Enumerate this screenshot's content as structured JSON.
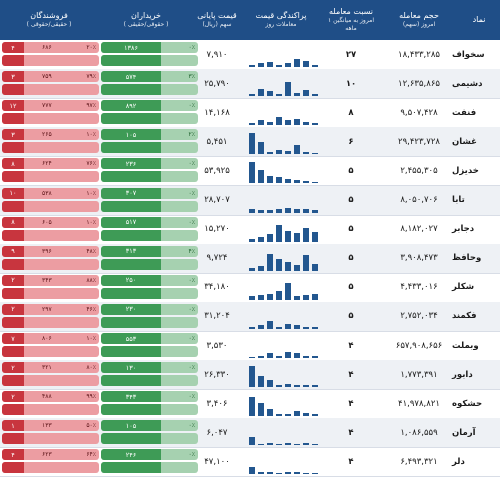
{
  "header": {
    "symbol": "نماد",
    "volume": "حجم معامله",
    "volume_sub": "امروز (سهم)",
    "ratio": "نسبت معامله",
    "ratio_sub": "امروز به میانگین ۱ ماهه",
    "dispersion": "پراکندگی قیمت",
    "dispersion_sub": "معاملات روز",
    "close": "قیمت پایانی",
    "close_sub": "سهم (ریال)",
    "buyers": "خریداران",
    "buyers_sub": "( حقوقی/حقیقی )",
    "sellers": "فروشندگان",
    "sellers_sub": "( حقیقی/حقوقی )"
  },
  "colors": {
    "header": "#1f4e87",
    "bar": "#23578f",
    "buy": "#3e9b56",
    "sell": "#c8353e"
  },
  "rows": [
    {
      "symbol": "سخواف",
      "volume": "۱۸,۴۳۳,۲۸۵",
      "ratio": "۲۷",
      "close": "۷,۹۱۰",
      "buy_real": "۰٪",
      "buy_legal": "۱۳۸۶",
      "sell_real": "۴",
      "sell_legal": "۶۸۶",
      "sell_pct": "۲۰٪"
    },
    {
      "symbol": "دشیمی",
      "volume": "۱۲,۶۳۵,۸۶۵",
      "ratio": "۱۰",
      "close": "۲۵,۷۹۰",
      "buy_real": "۳٪",
      "buy_legal": "۵۷۴",
      "sell_real": "۳",
      "sell_legal": "۷۵۹",
      "sell_pct": "۷۹٪"
    },
    {
      "symbol": "فنفت",
      "volume": "۹,۵۰۷,۴۲۸",
      "ratio": "۸",
      "close": "۱۴,۱۶۸",
      "buy_real": "۰٪",
      "buy_legal": "۸۹۲",
      "sell_real": "۱۲",
      "sell_legal": "۷۷۷",
      "sell_pct": "۹۷٪"
    },
    {
      "symbol": "غشان",
      "volume": "۲۹,۴۲۳,۷۲۸",
      "ratio": "۶",
      "close": "۵,۴۵۱",
      "buy_real": "۲٪",
      "buy_legal": "۱۰۵",
      "sell_real": "۳",
      "sell_legal": "۲۶۵",
      "sell_pct": "۱۰٪"
    },
    {
      "symbol": "خدیزل",
      "volume": "۲,۴۵۵,۳۰۵",
      "ratio": "۵",
      "close": "۵۳,۹۲۵",
      "buy_real": "۰٪",
      "buy_legal": "۲۳۶",
      "sell_real": "۸",
      "sell_legal": "۶۲۴",
      "sell_pct": "۷۶٪"
    },
    {
      "symbol": "تابا",
      "volume": "۸,۰۵۰,۷۰۶",
      "ratio": "۵",
      "close": "۲۸,۷۰۷",
      "buy_real": "۰٪",
      "buy_legal": "۳۰۷",
      "sell_real": "۱۰",
      "sell_legal": "۵۳۸",
      "sell_pct": "۱۰٪"
    },
    {
      "symbol": "دجابر",
      "volume": "۸,۱۸۲,۰۲۷",
      "ratio": "۵",
      "close": "۱۵,۲۷۰",
      "buy_real": "۰٪",
      "buy_legal": "۵۱۷",
      "sell_real": "۸",
      "sell_legal": "۶۰۵",
      "sell_pct": "۱۰٪"
    },
    {
      "symbol": "وحافظ",
      "volume": "۳,۹۰۸,۴۷۳",
      "ratio": "۵",
      "close": "۹,۷۲۴",
      "buy_real": "۴٪",
      "buy_legal": "۳۱۳",
      "sell_real": "۹",
      "sell_legal": "۳۹۶",
      "sell_pct": "۴۸٪"
    },
    {
      "symbol": "شکلر",
      "volume": "۴,۴۳۳,۰۱۶",
      "ratio": "۵",
      "close": "۳۴,۱۸۰",
      "buy_real": "۰٪",
      "buy_legal": "۲۵۰",
      "sell_real": "۲",
      "sell_legal": "۳۴۳",
      "sell_pct": "۸۸٪"
    },
    {
      "symbol": "فکمند",
      "volume": "۲,۷۵۲,۰۳۴",
      "ratio": "۵",
      "close": "۳۱,۲۰۴",
      "buy_real": "۰٪",
      "buy_legal": "۲۳۰",
      "sell_real": "۲",
      "sell_legal": "۲۹۷",
      "sell_pct": "۴۶٪"
    },
    {
      "symbol": "وبملت",
      "volume": "۶۵۷,۹۰۸,۶۵۶",
      "ratio": "۴",
      "close": "۳,۵۳۰",
      "buy_real": "۰٪",
      "buy_legal": "۵۵۳",
      "sell_real": "۷",
      "sell_legal": "۸۰۶",
      "sell_pct": "۱۰٪"
    },
    {
      "symbol": "دابور",
      "volume": "۱,۷۷۳,۳۹۱",
      "ratio": "۴",
      "close": "۲۶,۳۳۰",
      "buy_real": "۰٪",
      "buy_legal": "۱۳۰",
      "sell_real": "۲",
      "sell_legal": "۳۲۱",
      "sell_pct": "۸۰٪"
    },
    {
      "symbol": "حشکوه",
      "volume": "۴۱,۹۷۸,۸۲۱",
      "ratio": "۴",
      "close": "۳,۴۰۶",
      "buy_real": "۰٪",
      "buy_legal": "۳۴۳",
      "sell_real": "۲",
      "sell_legal": "۴۸۸",
      "sell_pct": "۹۹٪"
    },
    {
      "symbol": "آرمان",
      "volume": "۱,۰۸۶,۵۵۹",
      "ratio": "۴",
      "close": "۶,۰۴۷",
      "buy_real": "۰٪",
      "buy_legal": "۱۰۵",
      "sell_real": "۱",
      "sell_legal": "۱۳۳",
      "sell_pct": "۵۰٪"
    },
    {
      "symbol": "دلر",
      "volume": "۶,۴۹۳,۳۲۱",
      "ratio": "۴",
      "close": "۴۷,۱۰۰",
      "buy_real": "۰٪",
      "buy_legal": "۲۴۶",
      "sell_real": "۴",
      "sell_legal": "۶۲۳",
      "sell_pct": "۶۴٪"
    }
  ],
  "sparklines": [
    [
      0.1,
      0.25,
      0.35,
      0.15,
      0.1,
      0.2,
      0.15,
      0.1
    ],
    [
      0.1,
      0.25,
      0.15,
      0.6,
      0.1,
      0.2,
      0.3,
      0.1
    ],
    [
      0.1,
      0.15,
      0.25,
      0.2,
      0.35,
      0.15,
      0.2,
      0.1
    ],
    [
      0.05,
      0.1,
      0.4,
      0.15,
      0.2,
      0.1,
      0.5,
      0.9
    ],
    [
      0.05,
      0.1,
      0.15,
      0.2,
      0.25,
      0.3,
      0.55,
      0.9
    ],
    [
      0.1,
      0.15,
      0.15,
      0.2,
      0.15,
      0.1,
      0.1,
      0.15
    ],
    [
      0.4,
      0.55,
      0.35,
      0.45,
      0.7,
      0.3,
      0.2,
      0.1
    ],
    [
      0.3,
      0.65,
      0.25,
      0.35,
      0.5,
      0.7,
      0.2,
      0.1
    ],
    [
      0.25,
      0.2,
      0.15,
      0.7,
      0.35,
      0.25,
      0.2,
      0.15
    ],
    [
      0.1,
      0.1,
      0.15,
      0.2,
      0.1,
      0.35,
      0.15,
      0.1
    ],
    [
      0.1,
      0.1,
      0.2,
      0.25,
      0.1,
      0.2,
      0.1,
      0.05
    ],
    [
      0.1,
      0.1,
      0.1,
      0.15,
      0.1,
      0.3,
      0.45,
      0.9
    ],
    [
      0.1,
      0.15,
      0.2,
      0.1,
      0.1,
      0.3,
      0.55,
      0.8
    ],
    [
      0.05,
      0.1,
      0.05,
      0.1,
      0.05,
      0.1,
      0.05,
      0.35
    ],
    [
      0.05,
      0.05,
      0.1,
      0.1,
      0.05,
      0.1,
      0.1,
      0.3
    ]
  ]
}
